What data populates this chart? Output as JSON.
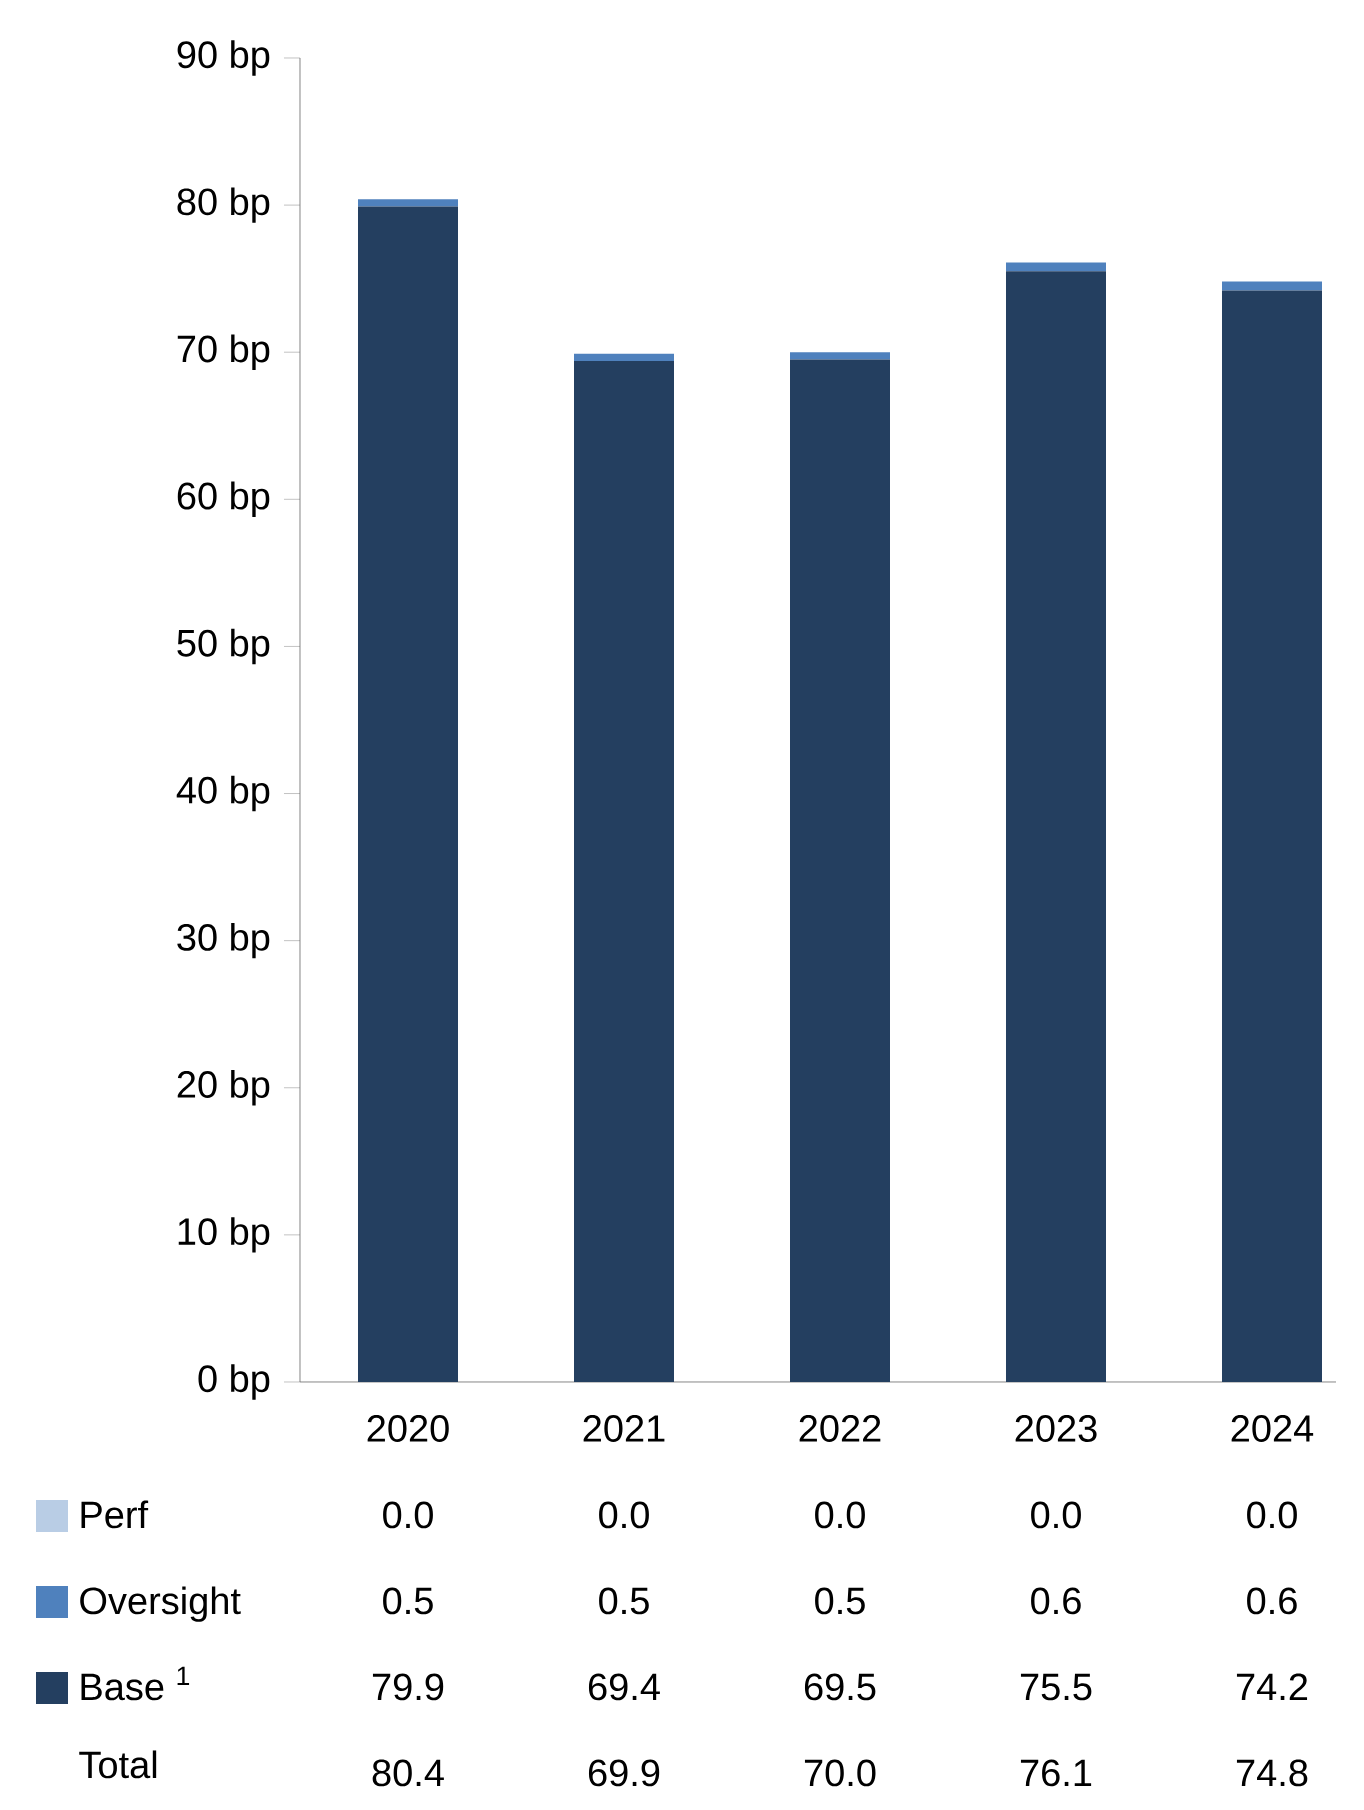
{
  "chart_data": {
    "type": "bar",
    "stacked": true,
    "categories": [
      "2020",
      "2021",
      "2022",
      "2023",
      "2024"
    ],
    "series": [
      {
        "name": "Base $^{1}$",
        "color": "#243f60",
        "values": [
          79.9,
          69.4,
          69.5,
          75.5,
          74.2
        ],
        "value_labels": [
          "79.9",
          "69.4",
          "69.5",
          "75.5",
          "74.2"
        ]
      },
      {
        "name": "Oversight",
        "color": "#4f81bd",
        "values": [
          0.5,
          0.5,
          0.5,
          0.6,
          0.6
        ],
        "value_labels": [
          "0.5",
          "0.5",
          "0.5",
          "0.6",
          "0.6"
        ]
      },
      {
        "name": "Perf",
        "color": "#b9cde5",
        "values": [
          0.0,
          0.0,
          0.0,
          0.0,
          0.0
        ],
        "value_labels": [
          "0.0",
          "0.0",
          "0.0",
          "0.0",
          "0.0"
        ]
      }
    ],
    "annotations": [
      "Total",
      "80.4",
      "69.9",
      "70.0",
      "76.1",
      "74.8"
    ],
    "ylim": [
      0,
      90
    ],
    "yticks": [
      {
        "value": 0,
        "label": "0 bp"
      },
      {
        "value": 10,
        "label": "10 bp"
      },
      {
        "value": 20,
        "label": "20 bp"
      },
      {
        "value": 30,
        "label": "30 bp"
      },
      {
        "value": 40,
        "label": "40 bp"
      },
      {
        "value": 50,
        "label": "50 bp"
      },
      {
        "value": 60,
        "label": "60 bp"
      },
      {
        "value": 70,
        "label": "70 bp"
      },
      {
        "value": 80,
        "label": "80 bp"
      },
      {
        "value": 90,
        "label": "90 bp"
      }
    ],
    "legend": "bottom left"
  }
}
